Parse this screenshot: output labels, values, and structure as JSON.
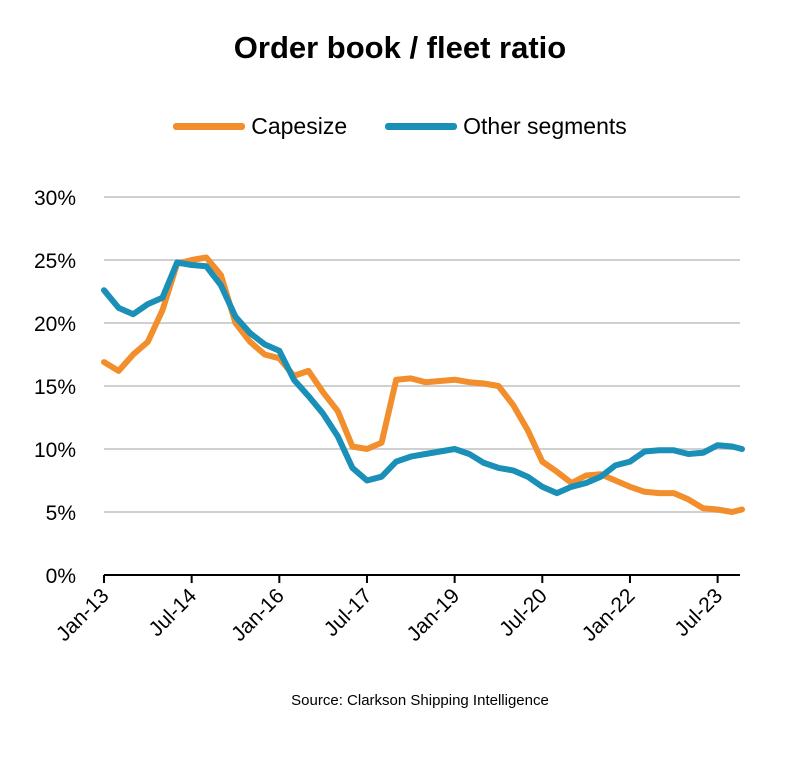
{
  "chart_data": {
    "type": "line",
    "title": "Order book / fleet ratio",
    "xlabel": "",
    "ylabel": "",
    "ylim": [
      0,
      30
    ],
    "yticks": [
      "0%",
      "5%",
      "10%",
      "15%",
      "20%",
      "25%",
      "30%"
    ],
    "xticks": [
      "Jan-13",
      "Jul-14",
      "Jan-16",
      "Jul-17",
      "Jan-19",
      "Jul-20",
      "Jan-22",
      "Jul-23"
    ],
    "grid": true,
    "legend_position": "top",
    "source": "Source: Clarkson Shipping Intelligence",
    "x": [
      "2013-01",
      "2013-04",
      "2013-07",
      "2013-10",
      "2014-01",
      "2014-04",
      "2014-07",
      "2014-10",
      "2015-01",
      "2015-04",
      "2015-07",
      "2015-10",
      "2016-01",
      "2016-04",
      "2016-07",
      "2016-10",
      "2017-01",
      "2017-04",
      "2017-07",
      "2017-10",
      "2018-01",
      "2018-04",
      "2018-07",
      "2018-10",
      "2019-01",
      "2019-04",
      "2019-07",
      "2019-10",
      "2020-01",
      "2020-04",
      "2020-07",
      "2020-10",
      "2021-01",
      "2021-04",
      "2021-07",
      "2021-10",
      "2022-01",
      "2022-04",
      "2022-07",
      "2022-10",
      "2023-01",
      "2023-04",
      "2023-07",
      "2023-10",
      "2023-12"
    ],
    "series": [
      {
        "name": "Capesize",
        "color": "#F28E2B",
        "values": [
          16.9,
          16.2,
          17.5,
          18.5,
          21.0,
          24.7,
          25.0,
          25.2,
          23.8,
          20.0,
          18.5,
          17.5,
          17.2,
          15.8,
          16.2,
          14.5,
          13.0,
          10.2,
          10.0,
          10.5,
          15.5,
          15.6,
          15.3,
          15.4,
          15.5,
          15.3,
          15.2,
          15.0,
          13.5,
          11.5,
          9.0,
          8.2,
          7.3,
          7.9,
          8.0,
          7.5,
          7.0,
          6.6,
          6.5,
          6.5,
          6.0,
          5.3,
          5.2,
          5.0,
          5.2
        ]
      },
      {
        "name": "Other segments",
        "color": "#1A8FB8",
        "values": [
          22.6,
          21.2,
          20.7,
          21.5,
          22.0,
          24.8,
          24.6,
          24.5,
          23.0,
          20.5,
          19.2,
          18.3,
          17.8,
          15.5,
          14.2,
          12.8,
          11.0,
          8.5,
          7.5,
          7.8,
          9.0,
          9.4,
          9.6,
          9.8,
          10.0,
          9.6,
          8.9,
          8.5,
          8.3,
          7.8,
          7.0,
          6.5,
          7.0,
          7.3,
          7.8,
          8.7,
          9.0,
          9.8,
          9.9,
          9.9,
          9.6,
          9.7,
          10.3,
          10.2,
          10.0
        ]
      }
    ]
  }
}
